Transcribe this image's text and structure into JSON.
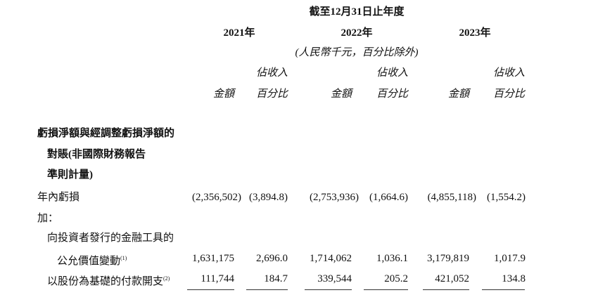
{
  "header": {
    "period": "截至12月31日止年度",
    "years": [
      "2021年",
      "2022年",
      "2023年"
    ],
    "unit_note": "(人民幣千元，百分比除外)",
    "col_pct_line1": "佔收入",
    "col_pct_line2": "百分比",
    "col_amount": "金額"
  },
  "section": {
    "title_lines": [
      "虧損淨額與經調整虧損淨額的",
      "對賬(非國際財務報告",
      "準則計量)"
    ]
  },
  "rows": [
    {
      "label": "年內虧損",
      "note": "",
      "values": [
        "(2,356,502)",
        "(3,894.8)",
        "(2,753,936)",
        "(1,664.6)",
        "(4,855,118)",
        "(1,554.2)"
      ]
    },
    {
      "label": "加：",
      "note": "",
      "values": []
    },
    {
      "label": "向投資者發行的金融工具的",
      "note": "",
      "values": []
    },
    {
      "label": "公允價值變動",
      "note": "(1)",
      "values": [
        "1,631,175",
        "2,696.0",
        "1,714,062",
        "1,036.1",
        "3,179,819",
        "1,017.9"
      ]
    },
    {
      "label": "以股份為基礎的付款開支",
      "note": "(2)",
      "values": [
        "111,744",
        "184.7",
        "339,544",
        "205.2",
        "421,052",
        "134.8"
      ]
    }
  ]
}
